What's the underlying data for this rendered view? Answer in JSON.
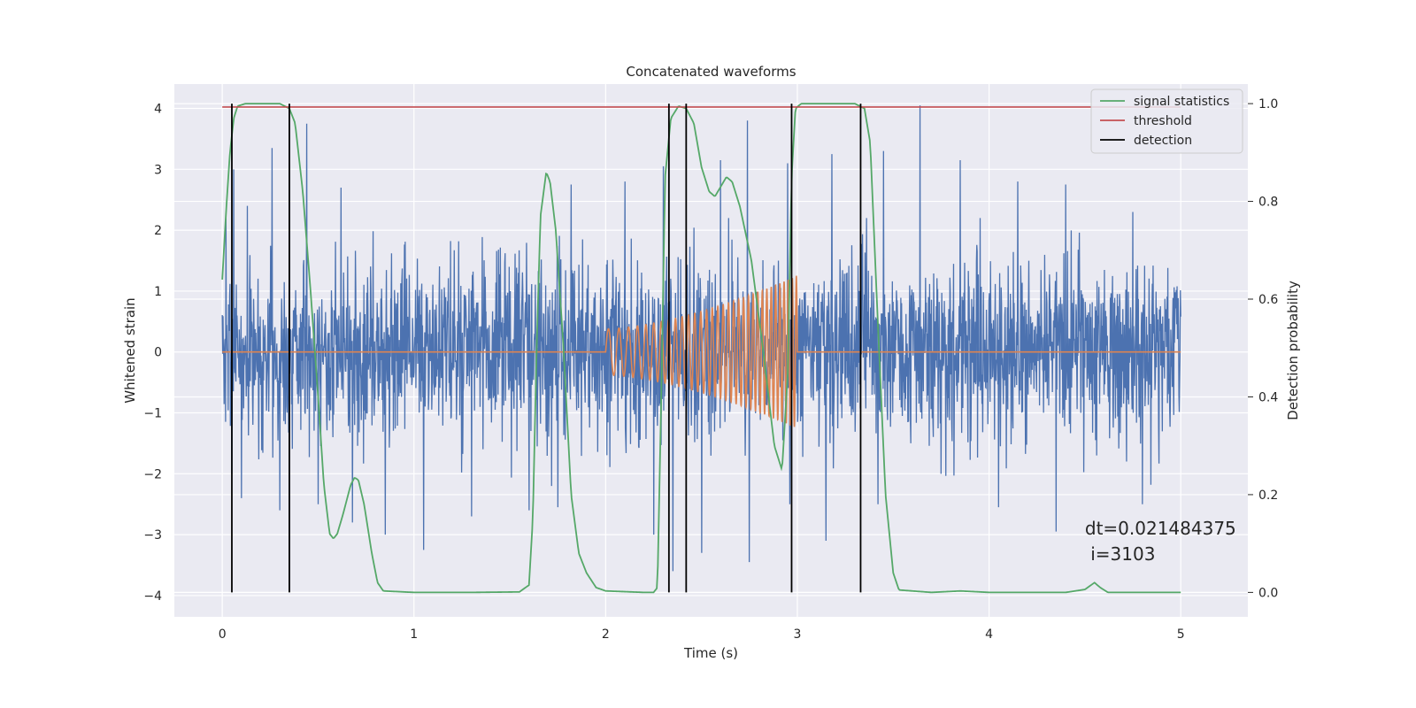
{
  "chart_data": {
    "type": "line",
    "title": "Concatenated waveforms",
    "xlabel": "Time (s)",
    "ylabel": "Whitened strain",
    "y2label": "Detection probability",
    "xlim": [
      -0.25,
      5.35
    ],
    "ylim": [
      -4.35,
      4.4
    ],
    "y2lim": [
      -0.05,
      1.04
    ],
    "x_ticks": [
      0,
      1,
      2,
      3,
      4,
      5
    ],
    "x_tick_labels": [
      "0",
      "1",
      "2",
      "3",
      "4",
      "5"
    ],
    "y_ticks": [
      -4,
      -3,
      -2,
      -1,
      0,
      1,
      2,
      3,
      4
    ],
    "y_tick_labels": [
      "−4",
      "−3",
      "−2",
      "−1",
      "0",
      "1",
      "2",
      "3",
      "4"
    ],
    "y2_ticks": [
      0.0,
      0.2,
      0.4,
      0.6,
      0.8,
      1.0
    ],
    "y2_tick_labels": [
      "0.0",
      "0.2",
      "0.4",
      "0.6",
      "0.8",
      "1.0"
    ],
    "grid": true,
    "legend_position": "top-right",
    "background": "#eaeaf2",
    "series": [
      {
        "name": "",
        "role": "whitened strain",
        "color": "#4c72b0",
        "axis": "left",
        "x_range": [
          0,
          5
        ],
        "envelope_peaks": [
          [
            0.02,
            2.2
          ],
          [
            0.06,
            3.0
          ],
          [
            0.13,
            2.4
          ],
          [
            0.26,
            3.35
          ],
          [
            0.35,
            3.1
          ],
          [
            0.44,
            3.75
          ],
          [
            0.62,
            2.7
          ],
          [
            0.85,
            2.35
          ],
          [
            1.05,
            2.1
          ],
          [
            1.3,
            2.3
          ],
          [
            1.6,
            2.7
          ],
          [
            1.82,
            2.75
          ],
          [
            2.1,
            2.8
          ],
          [
            2.3,
            3.05
          ],
          [
            2.6,
            3.15
          ],
          [
            2.74,
            3.8
          ],
          [
            2.95,
            3.1
          ],
          [
            3.18,
            3.25
          ],
          [
            3.45,
            3.3
          ],
          [
            3.64,
            4.05
          ],
          [
            3.85,
            3.15
          ],
          [
            4.15,
            2.8
          ],
          [
            4.4,
            2.75
          ],
          [
            4.75,
            2.3
          ]
        ],
        "envelope_troughs": [
          [
            0.05,
            -2.0
          ],
          [
            0.1,
            -2.4
          ],
          [
            0.3,
            -2.6
          ],
          [
            0.5,
            -2.5
          ],
          [
            0.68,
            -2.8
          ],
          [
            0.85,
            -3.0
          ],
          [
            1.05,
            -3.25
          ],
          [
            1.3,
            -2.7
          ],
          [
            1.6,
            -2.6
          ],
          [
            1.75,
            -2.55
          ],
          [
            2.25,
            -3.0
          ],
          [
            2.35,
            -3.6
          ],
          [
            2.5,
            -3.3
          ],
          [
            2.75,
            -3.45
          ],
          [
            2.96,
            -2.5
          ],
          [
            3.15,
            -3.1
          ],
          [
            3.42,
            -2.5
          ],
          [
            3.75,
            -2.0
          ],
          [
            4.05,
            -2.55
          ],
          [
            4.35,
            -2.95
          ],
          [
            4.8,
            -2.5
          ]
        ]
      },
      {
        "name": "",
        "role": "injected waveform",
        "color": "#dd8452",
        "axis": "left",
        "segments": [
          {
            "x": [
              0,
              2.0
            ],
            "value": 0
          },
          {
            "x": [
              2.0,
              3.0
            ],
            "chirp": {
              "amplitude_start": 0.38,
              "amplitude_end": 1.25,
              "f_start_hz": 17,
              "f_end_hz": 48
            }
          },
          {
            "x": [
              3.0,
              5.0
            ],
            "value": 0
          }
        ]
      },
      {
        "name": "signal statistics",
        "color": "#55a868",
        "axis": "right",
        "points": [
          [
            0.0,
            0.64
          ],
          [
            0.02,
            0.78
          ],
          [
            0.04,
            0.9
          ],
          [
            0.06,
            0.97
          ],
          [
            0.08,
            0.995
          ],
          [
            0.12,
            1.0
          ],
          [
            0.3,
            1.0
          ],
          [
            0.35,
            0.99
          ],
          [
            0.38,
            0.96
          ],
          [
            0.42,
            0.82
          ],
          [
            0.46,
            0.62
          ],
          [
            0.5,
            0.4
          ],
          [
            0.53,
            0.22
          ],
          [
            0.56,
            0.12
          ],
          [
            0.58,
            0.11
          ],
          [
            0.6,
            0.12
          ],
          [
            0.63,
            0.16
          ],
          [
            0.67,
            0.22
          ],
          [
            0.69,
            0.235
          ],
          [
            0.71,
            0.23
          ],
          [
            0.74,
            0.18
          ],
          [
            0.78,
            0.08
          ],
          [
            0.81,
            0.02
          ],
          [
            0.84,
            0.003
          ],
          [
            1.0,
            0.0
          ],
          [
            1.3,
            0.0
          ],
          [
            1.55,
            0.001
          ],
          [
            1.6,
            0.015
          ],
          [
            1.62,
            0.15
          ],
          [
            1.64,
            0.5
          ],
          [
            1.66,
            0.77
          ],
          [
            1.69,
            0.86
          ],
          [
            1.71,
            0.84
          ],
          [
            1.74,
            0.74
          ],
          [
            1.78,
            0.5
          ],
          [
            1.82,
            0.2
          ],
          [
            1.86,
            0.08
          ],
          [
            1.9,
            0.04
          ],
          [
            1.95,
            0.01
          ],
          [
            2.0,
            0.003
          ],
          [
            2.2,
            0.0
          ],
          [
            2.25,
            0.0
          ],
          [
            2.27,
            0.01
          ],
          [
            2.29,
            0.4
          ],
          [
            2.31,
            0.85
          ],
          [
            2.34,
            0.97
          ],
          [
            2.38,
            0.995
          ],
          [
            2.42,
            0.99
          ],
          [
            2.46,
            0.96
          ],
          [
            2.5,
            0.87
          ],
          [
            2.54,
            0.82
          ],
          [
            2.57,
            0.81
          ],
          [
            2.6,
            0.83
          ],
          [
            2.63,
            0.85
          ],
          [
            2.66,
            0.84
          ],
          [
            2.7,
            0.79
          ],
          [
            2.76,
            0.68
          ],
          [
            2.82,
            0.5
          ],
          [
            2.88,
            0.3
          ],
          [
            2.92,
            0.25
          ],
          [
            2.95,
            0.45
          ],
          [
            2.97,
            0.85
          ],
          [
            2.99,
            0.99
          ],
          [
            3.02,
            1.0
          ],
          [
            3.3,
            1.0
          ],
          [
            3.35,
            0.99
          ],
          [
            3.38,
            0.92
          ],
          [
            3.42,
            0.55
          ],
          [
            3.46,
            0.2
          ],
          [
            3.5,
            0.04
          ],
          [
            3.53,
            0.005
          ],
          [
            3.7,
            0.0
          ],
          [
            3.85,
            0.003
          ],
          [
            4.0,
            0.0
          ],
          [
            4.4,
            0.0
          ],
          [
            4.5,
            0.006
          ],
          [
            4.55,
            0.02
          ],
          [
            4.58,
            0.01
          ],
          [
            4.62,
            0.0
          ],
          [
            5.0,
            0.0
          ]
        ]
      },
      {
        "name": "threshold",
        "color": "#c44e52",
        "axis": "right",
        "x_range": [
          0,
          5
        ],
        "value": 0.993
      },
      {
        "name": "detection",
        "color": "#000000",
        "axis": "right",
        "x": [
          0.05,
          0.35,
          2.33,
          2.42,
          2.97,
          3.33
        ],
        "y_range": [
          0.0,
          1.0
        ]
      }
    ],
    "annotations": [
      {
        "text": "dt=0.021484375",
        "x": 4.5,
        "y": -3.0
      },
      {
        "text": " i=3103",
        "x": 4.5,
        "y": -3.42
      }
    ]
  }
}
